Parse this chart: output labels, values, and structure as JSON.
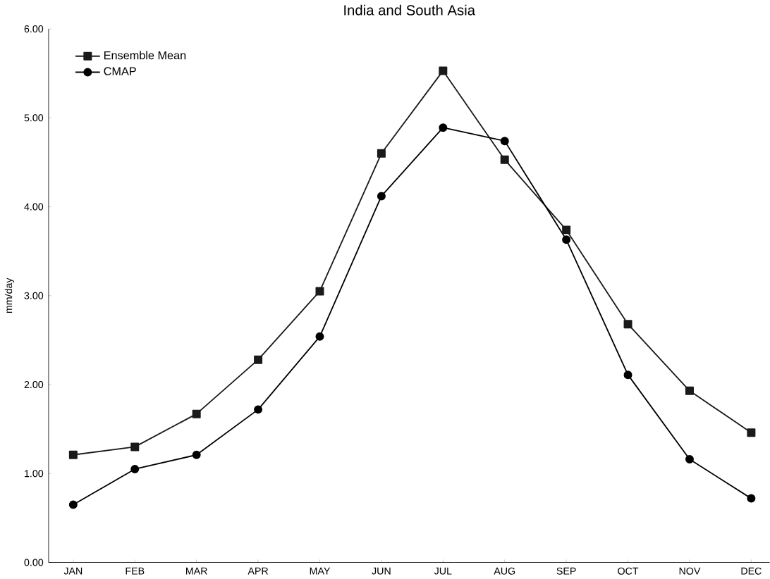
{
  "chart_data": {
    "type": "line",
    "title": "India and South Asia",
    "ylabel": "mm/day",
    "categories": [
      "JAN",
      "FEB",
      "MAR",
      "APR",
      "MAY",
      "JUN",
      "JUL",
      "AUG",
      "SEP",
      "OCT",
      "NOV",
      "DEC"
    ],
    "series": [
      {
        "name": "Ensemble Mean",
        "color": "#1a1a1a",
        "marker": "square",
        "values": [
          1.21,
          1.3,
          1.67,
          2.28,
          3.05,
          4.6,
          5.53,
          4.53,
          3.74,
          2.68,
          1.93,
          1.46
        ]
      },
      {
        "name": "CMAP",
        "color": "#000000",
        "marker": "circle",
        "values": [
          0.65,
          1.05,
          1.21,
          1.72,
          2.54,
          4.12,
          4.89,
          4.74,
          3.63,
          2.11,
          1.16,
          0.72
        ]
      }
    ],
    "ylim": [
      0,
      6
    ],
    "yticks": [
      {
        "value": 0,
        "label": "0.00"
      },
      {
        "value": 1,
        "label": "1.00"
      },
      {
        "value": 2,
        "label": "2.00"
      },
      {
        "value": 3,
        "label": "3.00"
      },
      {
        "value": 4,
        "label": "4.00"
      },
      {
        "value": 5,
        "label": "5.00"
      },
      {
        "value": 6,
        "label": "6.00"
      }
    ],
    "legend": "top left",
    "line_style": "solid"
  }
}
